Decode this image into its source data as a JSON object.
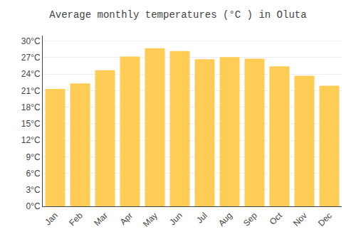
{
  "chart_data": {
    "type": "bar",
    "title": "Average monthly temperatures (°C ) in Oluta",
    "categories": [
      "Jan",
      "Feb",
      "Mar",
      "Apr",
      "May",
      "Jun",
      "Jul",
      "Aug",
      "Sep",
      "Oct",
      "Nov",
      "Dec"
    ],
    "values": [
      21.3,
      22.3,
      24.7,
      27.2,
      28.7,
      28.2,
      26.7,
      27.1,
      26.8,
      25.4,
      23.7,
      21.9
    ],
    "color": "#FFCC55",
    "ylim": [
      0,
      31
    ],
    "yticks": [
      {
        "value": 0,
        "label": "0°C"
      },
      {
        "value": 3,
        "label": "3°C"
      },
      {
        "value": 6,
        "label": "6°C"
      },
      {
        "value": 9,
        "label": "9°C"
      },
      {
        "value": 12,
        "label": "12°C"
      },
      {
        "value": 15,
        "label": "15°C"
      },
      {
        "value": 18,
        "label": "18°C"
      },
      {
        "value": 21,
        "label": "21°C"
      },
      {
        "value": 24,
        "label": "24°C"
      },
      {
        "value": 27,
        "label": "27°C"
      },
      {
        "value": 30,
        "label": "30°C"
      }
    ],
    "grid": true
  }
}
